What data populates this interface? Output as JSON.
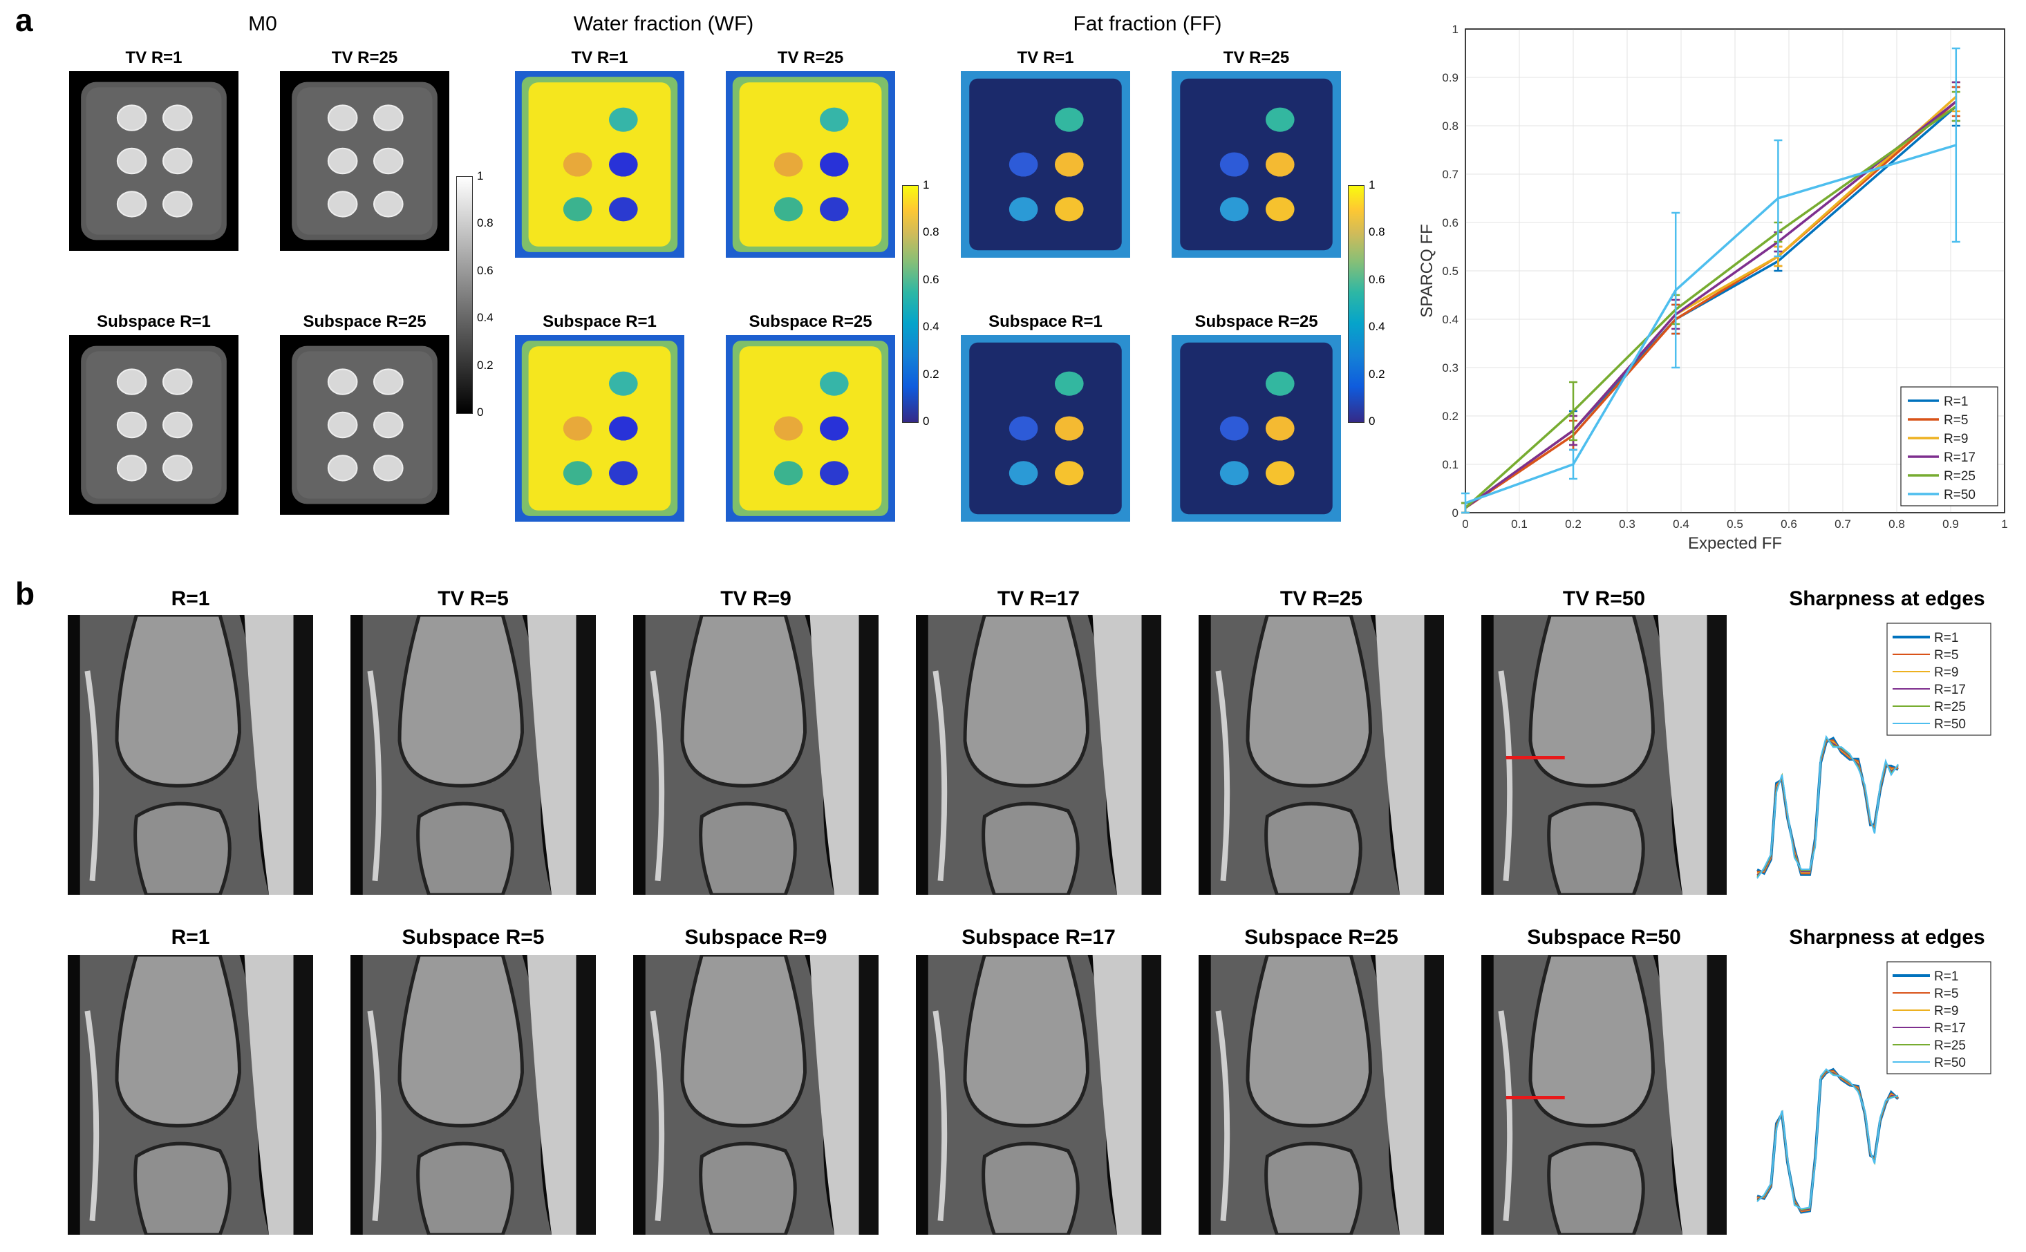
{
  "panel_a": {
    "letter": "a",
    "sections": {
      "m0": "M0",
      "wf": "Water fraction (WF)",
      "ff": "Fat fraction (FF)"
    },
    "tile_titles": {
      "tv_r1": "TV R=1",
      "tv_r25": "TV R=25",
      "sub_r1": "Subspace R=1",
      "sub_r25": "Subspace R=25"
    },
    "colorbar_ticks": [
      "0",
      "0.2",
      "0.4",
      "0.6",
      "0.8",
      "1"
    ],
    "colors": {
      "wf_background": "#f5e61e",
      "ff_background": "#1b2a6b"
    }
  },
  "panel_b": {
    "letter": "b",
    "row1_titles": [
      "R=1",
      "TV R=5",
      "TV R=9",
      "TV R=17",
      "TV R=25",
      "TV R=50"
    ],
    "row2_titles": [
      "R=1",
      "Subspace R=5",
      "Subspace R=9",
      "Subspace R=17",
      "Subspace R=25",
      "Subspace R=50"
    ],
    "sharpness_title": "Sharpness at edges",
    "legend": [
      "R=1",
      "R=5",
      "R=9",
      "R=17",
      "R=25",
      "R=50"
    ]
  },
  "chart_data": {
    "type": "line",
    "title": "",
    "xlabel": "Expected FF",
    "ylabel": "SPARCQ FF",
    "xlim": [
      0,
      1
    ],
    "ylim": [
      0,
      1
    ],
    "xticks": [
      "0",
      "0.1",
      "0.2",
      "0.3",
      "0.4",
      "0.5",
      "0.6",
      "0.7",
      "0.8",
      "0.9",
      "1"
    ],
    "yticks": [
      "0",
      "0.1",
      "0.2",
      "0.3",
      "0.4",
      "0.5",
      "0.6",
      "0.7",
      "0.8",
      "0.9",
      "1"
    ],
    "grid": true,
    "legend_position": "bottom-right",
    "x": [
      0,
      0.2,
      0.39,
      0.58,
      0.91
    ],
    "series": [
      {
        "name": "R=1",
        "color": "#0072bd",
        "values": [
          0.01,
          0.17,
          0.4,
          0.52,
          0.84
        ],
        "err": [
          0.01,
          0.04,
          0.03,
          0.02,
          0.04
        ]
      },
      {
        "name": "R=5",
        "color": "#d95319",
        "values": [
          0.01,
          0.16,
          0.4,
          0.53,
          0.85
        ],
        "err": [
          0.01,
          0.03,
          0.03,
          0.02,
          0.03
        ]
      },
      {
        "name": "R=9",
        "color": "#edb120",
        "values": [
          0.01,
          0.17,
          0.41,
          0.53,
          0.86
        ],
        "err": [
          0.01,
          0.03,
          0.03,
          0.02,
          0.03
        ]
      },
      {
        "name": "R=17",
        "color": "#7e2f8e",
        "values": [
          0.01,
          0.17,
          0.41,
          0.56,
          0.85
        ],
        "err": [
          0.01,
          0.03,
          0.03,
          0.02,
          0.04
        ]
      },
      {
        "name": "R=25",
        "color": "#77ac30",
        "values": [
          0.01,
          0.21,
          0.42,
          0.58,
          0.84
        ],
        "err": [
          0.01,
          0.06,
          0.03,
          0.02,
          0.03
        ]
      },
      {
        "name": "R=50",
        "color": "#4dbeee",
        "values": [
          0.02,
          0.1,
          0.46,
          0.65,
          0.76
        ],
        "err": [
          0.02,
          0.03,
          0.16,
          0.12,
          0.2
        ]
      }
    ]
  }
}
